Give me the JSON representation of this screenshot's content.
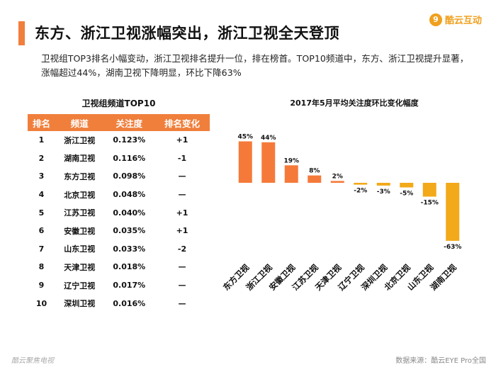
{
  "header": {
    "title": "东方、浙江卫视涨幅突出，浙江卫视全天登顶",
    "logo_mark": "9",
    "logo_text": "酷云互动",
    "subtitle": "卫视组TOP3排名小幅变动，浙江卫视排名提升一位，排在榜首。TOP10频道中，东方、浙江卫视提升显著，涨幅超过44%，湖南卫视下降明显，环比下降63%"
  },
  "table": {
    "title": "卫视组频道TOP10",
    "headers": [
      "排名",
      "频道",
      "关注度",
      "排名变化"
    ],
    "rows": [
      [
        "1",
        "浙江卫视",
        "0.123%",
        "+1"
      ],
      [
        "2",
        "湖南卫视",
        "0.116%",
        "-1"
      ],
      [
        "3",
        "东方卫视",
        "0.098%",
        "—"
      ],
      [
        "4",
        "北京卫视",
        "0.048%",
        "—"
      ],
      [
        "5",
        "江苏卫视",
        "0.040%",
        "+1"
      ],
      [
        "6",
        "安徽卫视",
        "0.035%",
        "+1"
      ],
      [
        "7",
        "山东卫视",
        "0.033%",
        "-2"
      ],
      [
        "8",
        "天津卫视",
        "0.018%",
        "—"
      ],
      [
        "9",
        "辽宁卫视",
        "0.017%",
        "—"
      ],
      [
        "10",
        "深圳卫视",
        "0.016%",
        "—"
      ]
    ]
  },
  "chart_data": {
    "type": "bar",
    "title": "2017年5月平均关注度环比变化幅度",
    "categories": [
      "东方卫视",
      "浙江卫视",
      "安徽卫视",
      "江苏卫视",
      "天津卫视",
      "辽宁卫视",
      "深圳卫视",
      "北京卫视",
      "山东卫视",
      "湖南卫视"
    ],
    "values": [
      45,
      44,
      19,
      8,
      2,
      -2,
      -3,
      -5,
      -15,
      -63
    ],
    "value_labels": [
      "45%",
      "44%",
      "19%",
      "8%",
      "2%",
      "-2%",
      "-3%",
      "-5%",
      "-15%",
      "-63%"
    ],
    "colors": {
      "positive": "#f57a3a",
      "negative": "#f2a91a"
    },
    "ylim": [
      -63,
      45
    ],
    "grid": false,
    "xlabel": "",
    "ylabel": ""
  },
  "footer": {
    "left": "酷云聚焦电视",
    "right": "数据来源：酷云EYE Pro全国"
  }
}
